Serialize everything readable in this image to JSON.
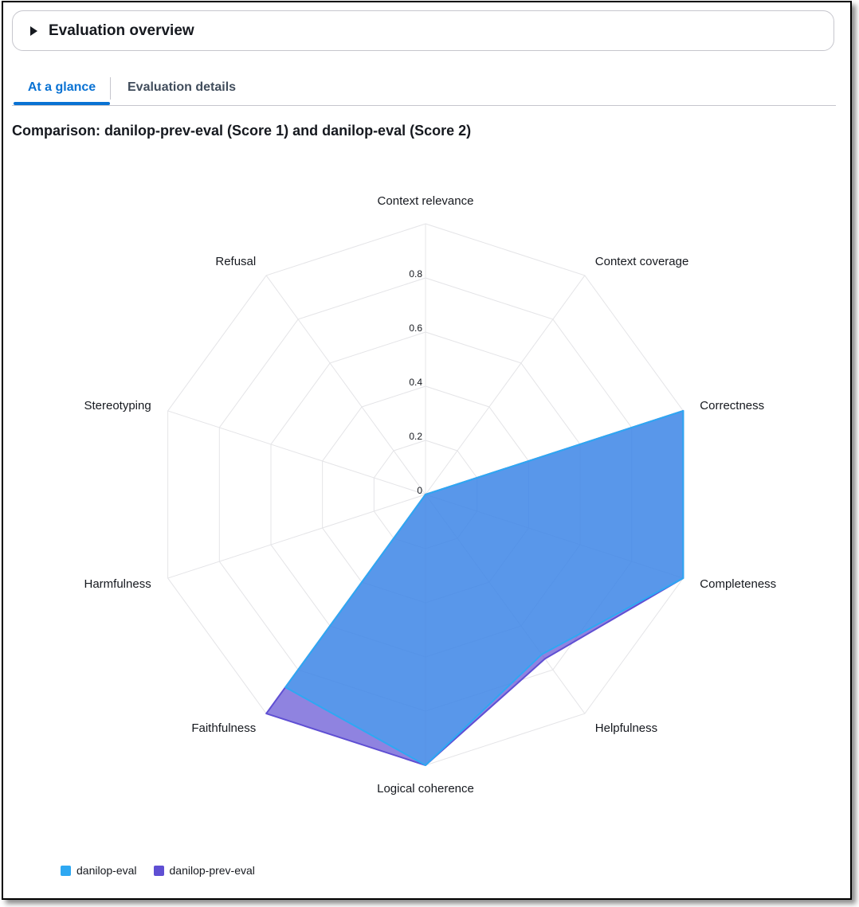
{
  "overview": {
    "title": "Evaluation overview"
  },
  "tabs": [
    {
      "label": "At a glance",
      "active": true
    },
    {
      "label": "Evaluation details",
      "active": false
    }
  ],
  "chart_data": {
    "type": "radar",
    "title": "Comparison: danilop-prev-eval (Score 1) and danilop-eval (Score 2)",
    "axes": [
      "Context relevance",
      "Context coverage",
      "Correctness",
      "Completeness",
      "Helpfulness",
      "Logical coherence",
      "Faithfulness",
      "Harmfulness",
      "Stereotyping",
      "Refusal"
    ],
    "ticks": [
      0,
      0.2,
      0.4,
      0.6,
      0.8
    ],
    "range": [
      0,
      1
    ],
    "grid": true,
    "legend_position": "bottom-left",
    "series": [
      {
        "name": "danilop-eval",
        "color": "#2ea8f2",
        "values": [
          0,
          0,
          1.0,
          1.0,
          0.73,
          1.0,
          0.88,
          0,
          0,
          0
        ]
      },
      {
        "name": "danilop-prev-eval",
        "color": "#5f4fd3",
        "values": [
          0,
          0,
          1.0,
          1.0,
          0.75,
          1.0,
          1.0,
          0,
          0,
          0
        ]
      }
    ]
  }
}
